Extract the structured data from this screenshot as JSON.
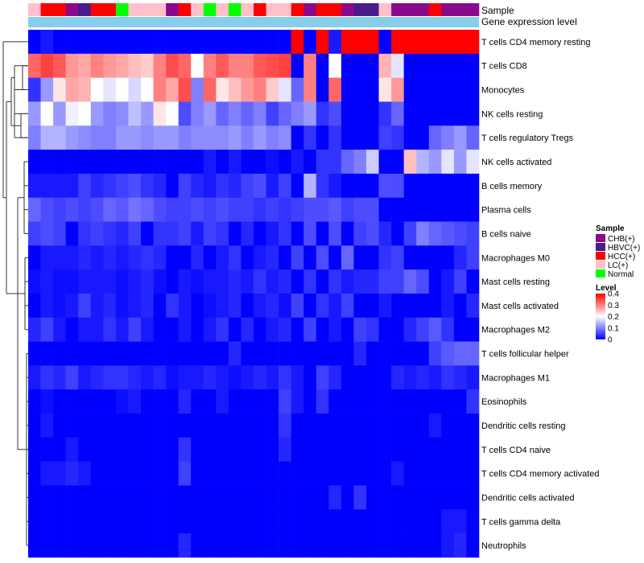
{
  "chart_data": {
    "type": "heatmap",
    "title": "",
    "annotation_tracks": [
      "Sample",
      "Gene expression level"
    ],
    "sample_groups": [
      {
        "name": "CHB(+)",
        "color": "#8B0A8B"
      },
      {
        "name": "HBVC(+)",
        "color": "#4B1A8C"
      },
      {
        "name": "HCC(+)",
        "color": "#FF0000"
      },
      {
        "name": "LC(+)",
        "color": "#FFC0CB"
      },
      {
        "name": "Normal",
        "color": "#00FF00"
      }
    ],
    "sample_annotation": [
      "LC(+)",
      "HCC(+)",
      "HCC(+)",
      "CHB(+)",
      "HBVC(+)",
      "HCC(+)",
      "HCC(+)",
      "Normal",
      "LC(+)",
      "LC(+)",
      "LC(+)",
      "CHB(+)",
      "HCC(+)",
      "LC(+)",
      "Normal",
      "LC(+)",
      "Normal",
      "LC(+)",
      "HCC(+)",
      "LC(+)",
      "LC(+)",
      "HCC(+)",
      "CHB(+)",
      "HCC(+)",
      "HCC(+)",
      "CHB(+)",
      "HBVC(+)",
      "HBVC(+)",
      "LC(+)",
      "CHB(+)",
      "CHB(+)",
      "CHB(+)",
      "HCC(+)",
      "CHB(+)",
      "CHB(+)",
      "CHB(+)"
    ],
    "gene_expression_color": "#87CEEB",
    "rows": [
      "T cells CD4 memory resting",
      "T cells CD8",
      "Monocytes",
      "NK cells resting",
      "T cells regulatory  Tregs",
      "NK cells activated",
      "B cells memory",
      "Plasma cells",
      "B cells naive",
      "Macrophages M0",
      "Mast cells resting",
      "Mast cells activated",
      "Macrophages M2",
      "T cells follicular helper",
      "Macrophages M1",
      "Eosinophils",
      "Dendritic cells resting",
      "T cells CD4 naive",
      "T cells CD4 memory activated",
      "Dendritic cells activated",
      "T cells gamma delta",
      "Neutrophils"
    ],
    "values": [
      [
        0.0,
        0.02,
        0.0,
        0.0,
        0.0,
        0.0,
        0.0,
        0.0,
        0.0,
        0.0,
        0.0,
        0.0,
        0.0,
        0.0,
        0.0,
        0.0,
        0.0,
        0.0,
        0.0,
        0.0,
        0.0,
        0.4,
        0.0,
        0.4,
        0.02,
        0.4,
        0.4,
        0.4,
        0.0,
        0.4,
        0.4,
        0.4,
        0.4,
        0.4,
        0.4,
        0.4
      ],
      [
        0.32,
        0.35,
        0.33,
        0.28,
        0.27,
        0.3,
        0.28,
        0.27,
        0.25,
        0.24,
        0.3,
        0.34,
        0.32,
        0.2,
        0.3,
        0.33,
        0.3,
        0.3,
        0.33,
        0.34,
        0.35,
        0.0,
        0.3,
        0.0,
        0.2,
        0.0,
        0.0,
        0.0,
        0.26,
        0.18,
        0.0,
        0.0,
        0.0,
        0.0,
        0.0,
        0.0
      ],
      [
        0.04,
        0.12,
        0.22,
        0.27,
        0.26,
        0.2,
        0.18,
        0.2,
        0.17,
        0.2,
        0.3,
        0.27,
        0.34,
        0.1,
        0.32,
        0.22,
        0.25,
        0.28,
        0.3,
        0.24,
        0.18,
        0.08,
        0.3,
        0.0,
        0.32,
        0.0,
        0.0,
        0.0,
        0.22,
        0.28,
        0.0,
        0.0,
        0.0,
        0.0,
        0.0,
        0.0
      ],
      [
        0.12,
        0.2,
        0.12,
        0.19,
        0.2,
        0.12,
        0.1,
        0.11,
        0.15,
        0.12,
        0.22,
        0.2,
        0.06,
        0.1,
        0.12,
        0.08,
        0.1,
        0.08,
        0.1,
        0.05,
        0.08,
        0.1,
        0.12,
        0.04,
        0.06,
        0.0,
        0.0,
        0.0,
        0.04,
        0.08,
        0.0,
        0.0,
        0.0,
        0.0,
        0.0,
        0.0
      ],
      [
        0.1,
        0.14,
        0.14,
        0.12,
        0.11,
        0.1,
        0.1,
        0.12,
        0.12,
        0.11,
        0.12,
        0.12,
        0.1,
        0.11,
        0.11,
        0.11,
        0.12,
        0.1,
        0.12,
        0.1,
        0.11,
        0.0,
        0.04,
        0.0,
        0.04,
        0.0,
        0.0,
        0.0,
        0.05,
        0.04,
        0.0,
        0.0,
        0.08,
        0.1,
        0.12,
        0.08
      ],
      [
        0.0,
        0.0,
        0.0,
        0.0,
        0.0,
        0.0,
        0.0,
        0.0,
        0.0,
        0.0,
        0.0,
        0.0,
        0.0,
        0.0,
        0.02,
        0.0,
        0.02,
        0.0,
        0.0,
        0.01,
        0.0,
        0.02,
        0.0,
        0.04,
        0.04,
        0.08,
        0.1,
        0.16,
        0.0,
        0.0,
        0.25,
        0.14,
        0.12,
        0.18,
        0.12,
        0.18
      ],
      [
        0.02,
        0.02,
        0.02,
        0.02,
        0.05,
        0.03,
        0.04,
        0.05,
        0.06,
        0.04,
        0.03,
        0.0,
        0.05,
        0.03,
        0.02,
        0.04,
        0.03,
        0.05,
        0.06,
        0.02,
        0.05,
        0.0,
        0.14,
        0.04,
        0.02,
        0.0,
        0.0,
        0.0,
        0.06,
        0.06,
        0.0,
        0.0,
        0.0,
        0.0,
        0.0,
        0.0
      ],
      [
        0.08,
        0.06,
        0.05,
        0.06,
        0.05,
        0.06,
        0.08,
        0.07,
        0.09,
        0.08,
        0.06,
        0.05,
        0.05,
        0.06,
        0.05,
        0.06,
        0.05,
        0.05,
        0.04,
        0.05,
        0.04,
        0.05,
        0.06,
        0.06,
        0.07,
        0.05,
        0.06,
        0.06,
        0.0,
        0.0,
        0.0,
        0.0,
        0.0,
        0.0,
        0.0,
        0.0
      ],
      [
        0.05,
        0.06,
        0.05,
        0.0,
        0.04,
        0.05,
        0.04,
        0.03,
        0.05,
        0.0,
        0.04,
        0.04,
        0.05,
        0.02,
        0.05,
        0.04,
        0.0,
        0.03,
        0.0,
        0.02,
        0.04,
        0.0,
        0.06,
        0.0,
        0.06,
        0.0,
        0.05,
        0.06,
        0.03,
        0.0,
        0.05,
        0.1,
        0.08,
        0.07,
        0.06,
        0.05
      ],
      [
        0.0,
        0.02,
        0.02,
        0.02,
        0.03,
        0.02,
        0.03,
        0.02,
        0.03,
        0.04,
        0.03,
        0.0,
        0.0,
        0.03,
        0.0,
        0.02,
        0.04,
        0.0,
        0.02,
        0.03,
        0.0,
        0.05,
        0.0,
        0.06,
        0.0,
        0.08,
        0.0,
        0.0,
        0.04,
        0.05,
        0.0,
        0.0,
        0.0,
        0.0,
        0.03,
        0.05
      ],
      [
        0.01,
        0.02,
        0.01,
        0.01,
        0.02,
        0.02,
        0.02,
        0.01,
        0.02,
        0.03,
        0.01,
        0.0,
        0.02,
        0.01,
        0.02,
        0.02,
        0.03,
        0.02,
        0.04,
        0.02,
        0.03,
        0.0,
        0.04,
        0.0,
        0.04,
        0.02,
        0.03,
        0.03,
        0.05,
        0.05,
        0.08,
        0.06,
        0.0,
        0.02,
        0.05,
        0.0
      ],
      [
        0.0,
        0.02,
        0.01,
        0.02,
        0.05,
        0.02,
        0.03,
        0.01,
        0.02,
        0.03,
        0.0,
        0.04,
        0.02,
        0.0,
        0.01,
        0.02,
        0.03,
        0.0,
        0.02,
        0.03,
        0.01,
        0.05,
        0.0,
        0.04,
        0.02,
        0.05,
        0.0,
        0.0,
        0.02,
        0.0,
        0.0,
        0.0,
        0.0,
        0.02,
        0.0,
        0.03
      ],
      [
        0.03,
        0.05,
        0.02,
        0.0,
        0.02,
        0.02,
        0.04,
        0.02,
        0.05,
        0.02,
        0.0,
        0.0,
        0.02,
        0.0,
        0.02,
        0.04,
        0.0,
        0.03,
        0.0,
        0.02,
        0.03,
        0.0,
        0.05,
        0.0,
        0.02,
        0.0,
        0.05,
        0.04,
        0.0,
        0.0,
        0.03,
        0.05,
        0.07,
        0.04,
        0.0,
        0.0
      ],
      [
        0.0,
        0.0,
        0.0,
        0.0,
        0.0,
        0.0,
        0.0,
        0.0,
        0.0,
        0.0,
        0.0,
        0.0,
        0.0,
        0.0,
        0.0,
        0.0,
        0.03,
        0.0,
        0.0,
        0.0,
        0.0,
        0.0,
        0.0,
        0.0,
        0.0,
        0.0,
        0.03,
        0.0,
        0.0,
        0.0,
        0.0,
        0.0,
        0.05,
        0.07,
        0.08,
        0.08
      ],
      [
        0.02,
        0.04,
        0.03,
        0.05,
        0.02,
        0.03,
        0.04,
        0.04,
        0.03,
        0.02,
        0.03,
        0.01,
        0.02,
        0.02,
        0.03,
        0.02,
        0.01,
        0.02,
        0.03,
        0.02,
        0.04,
        0.02,
        0.0,
        0.05,
        0.03,
        0.0,
        0.0,
        0.0,
        0.0,
        0.03,
        0.02,
        0.03,
        0.02,
        0.04,
        0.03,
        0.02
      ],
      [
        0.0,
        0.01,
        0.0,
        0.0,
        0.0,
        0.0,
        0.0,
        0.01,
        0.02,
        0.0,
        0.0,
        0.0,
        0.03,
        0.0,
        0.0,
        0.02,
        0.0,
        0.0,
        0.0,
        0.0,
        0.05,
        0.02,
        0.0,
        0.04,
        0.0,
        0.0,
        0.0,
        0.0,
        0.0,
        0.0,
        0.0,
        0.0,
        0.0,
        0.0,
        0.0,
        0.04
      ],
      [
        0.0,
        0.02,
        0.0,
        0.0,
        0.0,
        0.0,
        0.0,
        0.0,
        0.0,
        0.0,
        0.0,
        0.0,
        0.0,
        0.0,
        0.0,
        0.0,
        0.0,
        0.0,
        0.0,
        0.0,
        0.04,
        0.0,
        0.0,
        0.0,
        0.0,
        0.0,
        0.0,
        0.0,
        0.0,
        0.0,
        0.0,
        0.0,
        0.02,
        0.0,
        0.0,
        0.0
      ],
      [
        0.0,
        0.0,
        0.0,
        0.02,
        0.0,
        0.0,
        0.0,
        0.0,
        0.0,
        0.0,
        0.0,
        0.0,
        0.04,
        0.0,
        0.0,
        0.0,
        0.0,
        0.0,
        0.0,
        0.0,
        0.03,
        0.0,
        0.0,
        0.0,
        0.0,
        0.0,
        0.0,
        0.0,
        0.0,
        0.0,
        0.0,
        0.0,
        0.0,
        0.0,
        0.0,
        0.0
      ],
      [
        0.0,
        0.02,
        0.02,
        0.03,
        0.02,
        0.0,
        0.0,
        0.0,
        0.0,
        0.0,
        0.0,
        0.0,
        0.05,
        0.0,
        0.0,
        0.0,
        0.0,
        0.0,
        0.0,
        0.0,
        0.0,
        0.0,
        0.0,
        0.0,
        0.0,
        0.0,
        0.0,
        0.0,
        0.0,
        0.02,
        0.0,
        0.0,
        0.0,
        0.0,
        0.0,
        0.0
      ],
      [
        0.0,
        0.0,
        0.0,
        0.0,
        0.0,
        0.0,
        0.0,
        0.0,
        0.0,
        0.0,
        0.0,
        0.0,
        0.0,
        0.0,
        0.0,
        0.0,
        0.0,
        0.0,
        0.0,
        0.0,
        0.0,
        0.0,
        0.0,
        0.0,
        0.03,
        0.0,
        0.04,
        0.0,
        0.0,
        0.0,
        0.0,
        0.0,
        0.0,
        0.0,
        0.0,
        0.0
      ],
      [
        0.0,
        0.0,
        0.0,
        0.0,
        0.0,
        0.0,
        0.0,
        0.0,
        0.0,
        0.0,
        0.0,
        0.0,
        0.0,
        0.0,
        0.0,
        0.0,
        0.0,
        0.0,
        0.0,
        0.0,
        0.0,
        0.0,
        0.0,
        0.0,
        0.0,
        0.0,
        0.0,
        0.0,
        0.0,
        0.0,
        0.0,
        0.0,
        0.0,
        0.02,
        0.02,
        0.0
      ],
      [
        0.0,
        0.0,
        0.0,
        0.0,
        0.0,
        0.0,
        0.0,
        0.0,
        0.0,
        0.0,
        0.0,
        0.0,
        0.03,
        0.0,
        0.0,
        0.0,
        0.0,
        0.0,
        0.0,
        0.0,
        0.0,
        0.0,
        0.0,
        0.0,
        0.0,
        0.0,
        0.0,
        0.0,
        0.0,
        0.0,
        0.0,
        0.0,
        0.0,
        0.02,
        0.03,
        0.0
      ]
    ],
    "color_scale": {
      "min": 0,
      "max": 0.4,
      "low": "#0000FF",
      "mid": "#FFFFFF",
      "high": "#FF0000"
    },
    "legend": {
      "sample_title": "Sample",
      "level_title": "Level",
      "level_ticks": [
        "0",
        "0.1",
        "0.2",
        "0.3",
        "0.4"
      ],
      "level_tick_values": [
        0,
        0.1,
        0.2,
        0.3,
        0.4
      ],
      "placement": "right"
    },
    "row_dendrogram": true
  }
}
